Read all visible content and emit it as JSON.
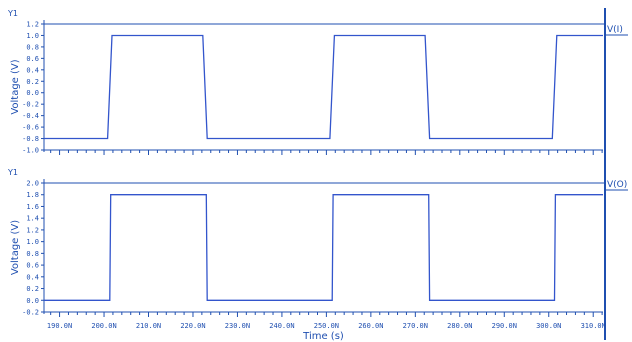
{
  "chart_data": [
    {
      "type": "line",
      "panel_tag": "Y1",
      "ylabel": "Voltage (V)",
      "signal_label": "V(I)",
      "ylim": [
        -1.0,
        1.2
      ],
      "yticks": [
        -1.0,
        -0.8,
        -0.6,
        -0.4,
        -0.2,
        0.0,
        0.2,
        0.4,
        0.6,
        0.8,
        1.0,
        1.2
      ],
      "ytick_labels": [
        "-1.0",
        "-0.8",
        "-0.6",
        "-0.4",
        "-0.2",
        "0.0",
        "0.2",
        "0.4",
        "0.6",
        "0.8",
        "1.0",
        "1.2"
      ],
      "xlim": [
        186.5,
        312.2
      ],
      "series": [
        {
          "x": [
            186.5,
            200.8,
            201.8,
            222.2,
            223.2,
            250.8,
            251.8,
            272.2,
            273.2,
            300.8,
            301.8,
            312.2
          ],
          "y": [
            -0.8,
            -0.8,
            1.0,
            1.0,
            -0.8,
            -0.8,
            1.0,
            1.0,
            -0.8,
            -0.8,
            1.0,
            1.0
          ]
        }
      ]
    },
    {
      "type": "line",
      "panel_tag": "Y1",
      "ylabel": "Voltage (V)",
      "signal_label": "V(O)",
      "xlabel": "Time (s)",
      "ylim": [
        -0.2,
        2.0
      ],
      "yticks": [
        -0.2,
        0.0,
        0.2,
        0.4,
        0.6,
        0.8,
        1.0,
        1.2,
        1.4,
        1.6,
        1.8,
        2.0
      ],
      "ytick_labels": [
        "-0.2",
        "0.0",
        "0.2",
        "0.4",
        "0.6",
        "0.8",
        "1.0",
        "1.2",
        "1.4",
        "1.6",
        "1.8",
        "2.0"
      ],
      "xlim": [
        186.5,
        312.2
      ],
      "xticks": [
        190,
        200,
        210,
        220,
        230,
        240,
        250,
        260,
        270,
        280,
        290,
        300,
        310
      ],
      "xtick_labels": [
        "190.0N",
        "200.0N",
        "210.0N",
        "220.0N",
        "230.0N",
        "240.0N",
        "250.0N",
        "260.0N",
        "270.0N",
        "280.0N",
        "290.0N",
        "300.0N",
        "310.0N"
      ],
      "series": [
        {
          "x": [
            186.5,
            201.3,
            201.5,
            223.0,
            223.2,
            251.3,
            251.5,
            273.0,
            273.2,
            301.3,
            301.5,
            312.2
          ],
          "y": [
            0.0,
            0.0,
            1.8,
            1.8,
            0.0,
            0.0,
            1.8,
            1.8,
            0.0,
            0.0,
            1.8,
            1.8
          ]
        }
      ]
    }
  ],
  "colors": {
    "trace": "#3355cc",
    "axis": "#1f4fb0",
    "background": "#ffffff"
  }
}
